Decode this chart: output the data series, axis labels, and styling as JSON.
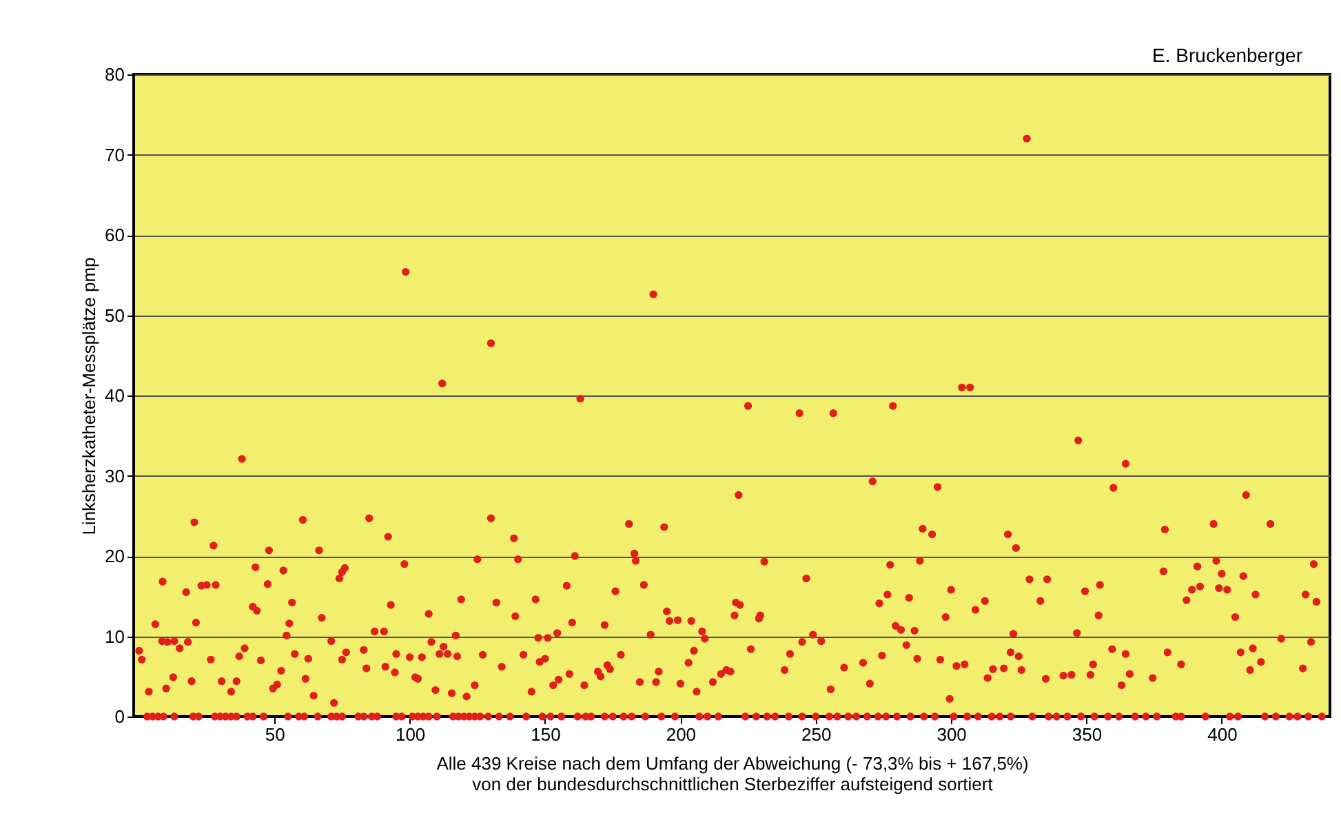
{
  "chart_data": {
    "type": "scatter",
    "xlabel": "Alle 439 Kreise nach dem Umfang der  Abweichung (- 73,3% bis + 167,5%)\nvon der bundesdurchschnittlichen Sterbeziffer aufsteigend sortiert",
    "ylabel": "Linksherzkatheter-Messplätze pmp",
    "annotations": [
      "E. Bruckenberger"
    ],
    "xlim": [
      -2,
      440
    ],
    "xticks": [
      50,
      100,
      150,
      200,
      250,
      300,
      350,
      400
    ],
    "ylim": [
      0,
      80
    ],
    "yticks": [
      0,
      10,
      20,
      30,
      40,
      50,
      60,
      70,
      80
    ],
    "grid": "y",
    "marker": "circle",
    "legend": false,
    "series": [
      {
        "color": "#e0201b",
        "x": [
          0,
          1,
          3.6,
          6,
          8.7,
          8.5,
          10,
          10.5,
          12.6,
          13,
          15,
          17.4,
          18,
          19.4,
          20.4,
          21,
          23,
          25,
          26.5,
          27.5,
          28.3,
          30.5,
          34,
          36,
          37,
          38,
          39,
          42,
          43,
          43.5,
          45,
          47.5,
          48,
          49.5,
          51,
          52.5,
          53.3,
          54.5,
          55.5,
          56.5,
          57.5,
          60.5,
          61.5,
          62.5,
          64.5,
          66.5,
          67.5,
          71,
          72,
          74,
          75,
          76,
          75,
          76.5,
          83,
          84,
          85,
          87,
          90.5,
          91,
          92,
          93,
          94.5,
          95,
          98,
          98.5,
          100,
          102,
          103,
          104.5,
          107,
          108,
          109.5,
          111,
          112,
          112.5,
          114,
          115.5,
          117,
          117.5,
          119,
          121,
          124,
          125,
          127,
          130,
          130,
          132,
          134,
          138.5,
          139,
          140,
          142,
          145,
          146.5,
          147.5,
          148,
          150,
          151,
          153,
          154.5,
          155,
          158,
          159,
          160,
          161,
          163,
          164.5,
          169.5,
          170.5,
          172,
          173,
          174,
          176,
          178,
          181,
          183,
          183.5,
          185,
          186.5,
          189,
          190,
          191,
          192,
          194,
          195,
          196,
          199,
          200,
          203,
          204,
          205,
          206,
          208,
          209,
          212,
          215,
          217,
          218.5,
          220,
          220.5,
          221.5,
          222,
          225,
          226,
          229,
          229.5,
          231,
          238.5,
          240.5,
          244,
          245,
          246.5,
          249,
          252,
          255.5,
          256.5,
          260.5,
          267.5,
          270,
          271,
          273.5,
          274.5,
          276.5,
          277.5,
          278.5,
          279.5,
          281.5,
          283.5,
          284.5,
          286.5,
          287.5,
          288.5,
          289.5,
          293,
          295,
          296,
          298,
          299.5,
          300,
          302,
          305,
          304,
          307,
          309,
          312.5,
          313.5,
          315.5,
          319.5,
          321,
          322,
          323,
          324,
          325,
          326,
          328,
          329,
          333,
          335,
          335.5,
          341.5,
          344.5,
          346.5,
          347,
          349.5,
          351.5,
          352.5,
          354.5,
          355,
          359.5,
          360,
          363,
          364.5,
          364.5,
          366,
          374.5,
          378.5,
          379,
          380,
          385,
          387,
          389,
          391,
          392,
          397,
          398,
          399,
          400,
          402,
          405,
          407,
          408,
          409,
          410.5,
          411.5,
          412.5,
          414.5,
          418,
          422,
          430,
          431,
          433,
          434,
          435,
          3,
          5,
          7,
          9,
          13,
          20,
          22,
          28,
          30,
          32,
          34,
          36,
          40,
          42,
          46,
          55,
          59,
          61,
          66,
          71,
          73,
          75,
          81,
          83,
          86,
          88,
          95,
          97,
          101,
          103,
          105,
          107,
          110,
          116,
          118,
          120,
          122,
          124,
          126,
          129,
          133,
          137,
          143,
          149,
          152,
          156,
          162,
          165,
          167,
          172,
          175,
          179,
          182,
          187,
          193,
          198,
          207,
          210,
          214,
          224,
          228,
          232,
          235,
          240,
          245,
          250,
          255,
          258,
          262,
          265,
          269,
          273,
          276,
          280,
          285,
          290,
          294,
          301,
          306,
          310,
          315,
          318,
          322,
          330,
          336,
          339,
          343,
          348,
          353,
          358,
          362,
          368,
          372,
          376,
          383,
          385,
          394,
          403,
          406,
          416,
          420,
          425,
          428,
          432,
          437
        ],
        "values": [
          8.2,
          7.1,
          3.1,
          11.5,
          16.8,
          9.4,
          3.5,
          9.3,
          4.9,
          9.4,
          8.5,
          15.5,
          9.3,
          4.4,
          24.2,
          11.7,
          16.3,
          16.4,
          7.1,
          21.3,
          16.4,
          4.4,
          3.1,
          4.4,
          7.5,
          32.1,
          8.5,
          13.7,
          18.6,
          13.2,
          7,
          16.5,
          20.7,
          3.5,
          4,
          5.7,
          18.2,
          10.1,
          11.6,
          14.2,
          7.8,
          24.5,
          4.7,
          7.2,
          2.6,
          20.7,
          12.3,
          9.4,
          1.7,
          17.2,
          18,
          18.5,
          7.1,
          8,
          8.3,
          6,
          24.7,
          10.6,
          10.6,
          6.2,
          22.4,
          13.9,
          5.5,
          7.8,
          19,
          55.4,
          7.4,
          4.9,
          4.7,
          7.4,
          12.8,
          9.3,
          3.3,
          7.8,
          41.5,
          8.7,
          7.8,
          2.9,
          10.1,
          7.5,
          14.6,
          2.5,
          3.9,
          19.6,
          7.7,
          24.7,
          46.5,
          14.2,
          6.2,
          22.2,
          12.5,
          19.6,
          7.7,
          3.1,
          14.6,
          9.8,
          6.8,
          7.2,
          9.8,
          3.9,
          10.4,
          4.6,
          16.3,
          5.3,
          11.7,
          20,
          39.6,
          3.9,
          5.6,
          5,
          11.4,
          6.4,
          5.9,
          15.6,
          7.7,
          24,
          20.3,
          19.4,
          4.3,
          16.4,
          10.2,
          52.6,
          4.3,
          5.6,
          23.6,
          13.1,
          11.9,
          12,
          4.1,
          6.7,
          11.9,
          8.2,
          3.1,
          10.6,
          9.7,
          4.3,
          5.3,
          5.8,
          5.6,
          12.6,
          14.2,
          27.6,
          13.9,
          38.7,
          8.4,
          12.2,
          12.6,
          19.3,
          5.8,
          7.8,
          37.8,
          9.3,
          17.2,
          10.2,
          9.4,
          3.4,
          37.8,
          6.1,
          6.7,
          4.1,
          29.3,
          14.1,
          7.6,
          15.2,
          18.9,
          38.7,
          11.3,
          10.8,
          8.9,
          14.8,
          10.7,
          7.2,
          19.4,
          23.4,
          22.7,
          28.6,
          7.1,
          12.4,
          2.2,
          15.8,
          6.3,
          6.5,
          41,
          41,
          13.3,
          14.4,
          4.8,
          5.9,
          6,
          22.7,
          8,
          10.3,
          21,
          7.5,
          5.8,
          72,
          17.1,
          14.4,
          4.7,
          17.1,
          5.1,
          5.2,
          10.4,
          34.4,
          15.6,
          5.2,
          6.5,
          12.6,
          16.4,
          8.4,
          28.5,
          3.9,
          31.5,
          7.8,
          5.3,
          4.8,
          18.1,
          23.3,
          8,
          6.5,
          14.5,
          15.8,
          18.7,
          16.2,
          24,
          19.4,
          16,
          17.8,
          15.8,
          12.4,
          8,
          17.5,
          27.6,
          5.8,
          8.5,
          15.2,
          6.8,
          24,
          9.7,
          6,
          15.2,
          9.3,
          19,
          14.3,
          0,
          0,
          0,
          0,
          0,
          0,
          0,
          0,
          0,
          0,
          0,
          0,
          0,
          0,
          0,
          0,
          0,
          0,
          0,
          0,
          0,
          0,
          0,
          0,
          0,
          0,
          0,
          0,
          0,
          0,
          0,
          0,
          0,
          0,
          0,
          0,
          0,
          0,
          0,
          0,
          0,
          0,
          0,
          0,
          0,
          0,
          0,
          0,
          0,
          0,
          0,
          0,
          0,
          0,
          0,
          0,
          0,
          0,
          0,
          0,
          0,
          0,
          0,
          0,
          0,
          0,
          0,
          0,
          0,
          0,
          0,
          0,
          0,
          0,
          0,
          0,
          0,
          0,
          0,
          0,
          0,
          0,
          0,
          0,
          0,
          0,
          0,
          0,
          0,
          0,
          0,
          0,
          0,
          0,
          0,
          0,
          0,
          0,
          0,
          0,
          0,
          0,
          0,
          0,
          0
        ]
      }
    ]
  }
}
